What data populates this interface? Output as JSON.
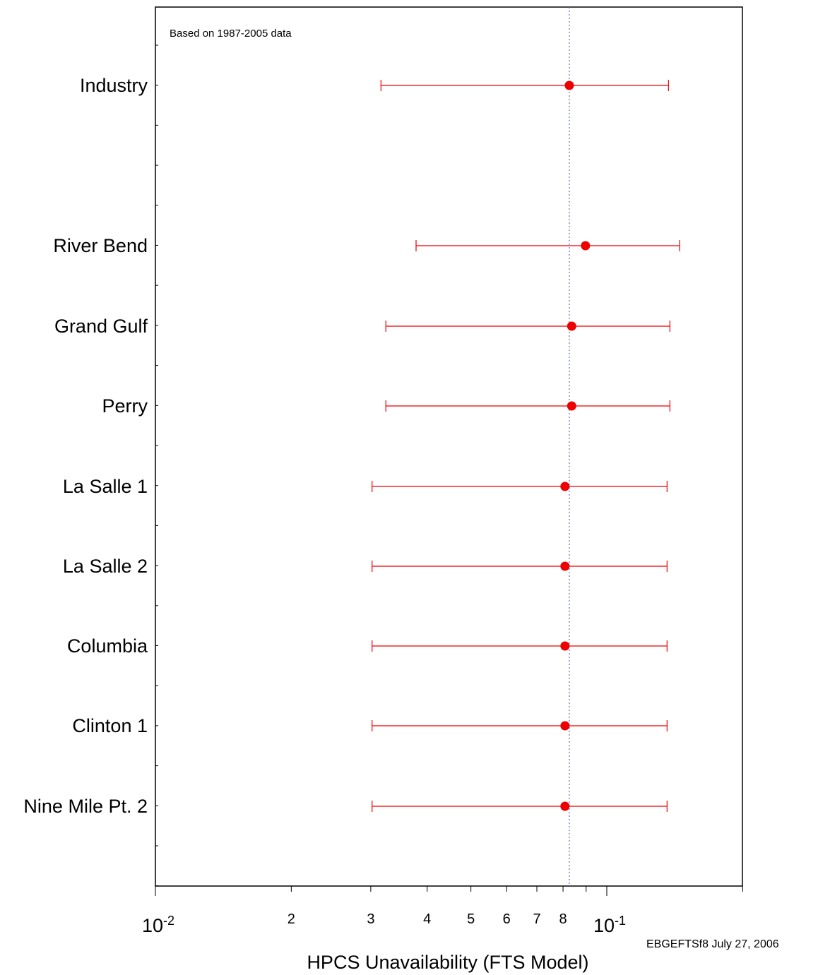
{
  "chart_data": {
    "type": "scatter",
    "orientation": "horizontal",
    "xlabel": "HPCS Unavailability (FTS Model)",
    "annotation": "Based on 1987-2005 data",
    "footer_note": "EBGEFTSf8  July 27, 2006",
    "x_scale": "log",
    "xlim": [
      0.01,
      0.36
    ],
    "x_ticks": [
      {
        "value": 0.01,
        "label": "10",
        "exp": "-2"
      },
      {
        "value": 0.02,
        "label": "2"
      },
      {
        "value": 0.03,
        "label": "3"
      },
      {
        "value": 0.04,
        "label": "4"
      },
      {
        "value": 0.05,
        "label": "5"
      },
      {
        "value": 0.06,
        "label": "6"
      },
      {
        "value": 0.07,
        "label": "7"
      },
      {
        "value": 0.08,
        "label": "8"
      },
      {
        "value": 0.1,
        "label": "10",
        "exp": "-1"
      }
    ],
    "minor_ticks": [
      0.09,
      0.2,
      0.3
    ],
    "reference_line": {
      "value": 0.0826,
      "style": "dotted",
      "color": "#6666cc"
    },
    "colors": {
      "marker": "#ee0000",
      "errorbar": "#ee0000",
      "axis": "#000000"
    },
    "categories": [
      {
        "name": "Industry",
        "mean": 0.0826,
        "lower": 0.0316,
        "upper": 0.137
      },
      {
        "name": "River Bend",
        "mean": 0.0897,
        "lower": 0.0378,
        "upper": 0.145
      },
      {
        "name": "Grand Gulf",
        "mean": 0.0836,
        "lower": 0.0324,
        "upper": 0.138
      },
      {
        "name": "Perry",
        "mean": 0.0836,
        "lower": 0.0324,
        "upper": 0.138
      },
      {
        "name": "La Salle 1",
        "mean": 0.0808,
        "lower": 0.0302,
        "upper": 0.136
      },
      {
        "name": "La Salle 2",
        "mean": 0.0808,
        "lower": 0.0302,
        "upper": 0.136
      },
      {
        "name": "Columbia",
        "mean": 0.0808,
        "lower": 0.0302,
        "upper": 0.136
      },
      {
        "name": "Clinton 1",
        "mean": 0.0808,
        "lower": 0.0302,
        "upper": 0.136
      },
      {
        "name": "Nine Mile Pt. 2",
        "mean": 0.0808,
        "lower": 0.0302,
        "upper": 0.136
      }
    ]
  }
}
